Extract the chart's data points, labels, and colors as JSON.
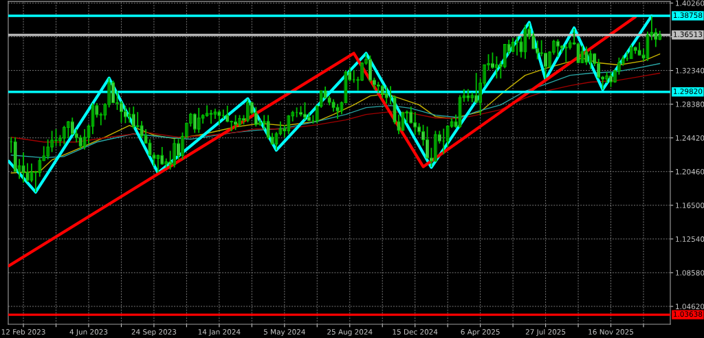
{
  "chart_data": {
    "type": "candlestick",
    "color": "#00c000",
    "x": [
      "2023-01-22",
      "2023-01-29",
      "2023-02-05",
      "2023-02-12",
      "2023-02-19",
      "2023-02-26",
      "2023-03-05",
      "2023-03-12",
      "2023-03-19",
      "2023-03-26",
      "2023-04-02",
      "2023-04-09",
      "2023-04-16",
      "2023-04-23",
      "2023-04-30",
      "2023-05-07",
      "2023-05-14",
      "2023-05-21",
      "2023-05-28",
      "2023-06-04",
      "2023-06-11",
      "2023-06-18",
      "2023-06-25",
      "2023-07-02",
      "2023-07-09",
      "2023-07-16",
      "2023-07-23",
      "2023-07-30",
      "2023-08-06",
      "2023-08-13",
      "2023-08-20",
      "2023-08-27",
      "2023-09-03",
      "2023-09-10",
      "2023-09-17",
      "2023-09-24",
      "2023-10-01",
      "2023-10-08",
      "2023-10-15",
      "2023-10-22",
      "2023-10-29",
      "2023-11-05",
      "2023-11-12",
      "2023-11-19",
      "2023-11-26",
      "2023-12-03",
      "2023-12-10",
      "2023-12-17",
      "2023-12-24",
      "2023-12-31",
      "2024-01-07",
      "2024-01-14",
      "2024-01-21",
      "2024-01-28",
      "2024-02-04",
      "2024-02-11",
      "2024-02-18",
      "2024-02-25",
      "2024-03-03",
      "2024-03-10",
      "2024-03-17",
      "2024-03-24",
      "2024-03-31",
      "2024-04-07",
      "2024-04-14",
      "2024-04-21",
      "2024-04-28",
      "2024-05-05",
      "2024-05-12",
      "2024-05-19",
      "2024-05-26",
      "2024-06-02",
      "2024-06-09",
      "2024-06-16",
      "2024-06-23",
      "2024-06-30",
      "2024-07-07",
      "2024-07-14",
      "2024-07-21",
      "2024-07-28",
      "2024-08-04",
      "2024-08-11",
      "2024-08-18",
      "2024-08-25",
      "2024-09-01",
      "2024-09-08",
      "2024-09-15",
      "2024-09-22",
      "2024-09-29",
      "2024-10-06",
      "2024-10-13",
      "2024-10-20",
      "2024-10-27",
      "2024-11-03",
      "2024-11-10",
      "2024-11-17",
      "2024-11-24",
      "2024-12-01",
      "2024-12-08",
      "2024-12-15",
      "2024-12-22",
      "2024-12-29",
      "2025-01-05",
      "2025-01-12",
      "2025-01-19",
      "2025-01-26",
      "2025-02-02",
      "2025-02-09",
      "2025-02-16",
      "2025-02-23",
      "2025-03-02",
      "2025-03-09",
      "2025-03-16",
      "2025-03-23",
      "2025-03-30",
      "2025-04-06",
      "2025-04-13",
      "2025-04-20",
      "2025-04-27",
      "2025-05-04",
      "2025-05-11",
      "2025-05-18",
      "2025-05-25",
      "2025-06-01",
      "2025-06-08",
      "2025-06-15",
      "2025-06-22",
      "2025-06-29",
      "2025-07-06",
      "2025-07-13",
      "2025-07-20",
      "2025-07-27",
      "2025-08-03",
      "2025-08-10",
      "2025-08-17",
      "2025-08-24",
      "2025-08-31",
      "2025-09-07",
      "2025-09-14",
      "2025-09-21",
      "2025-09-28",
      "2025-10-05",
      "2025-10-12",
      "2025-10-19",
      "2025-10-26",
      "2025-11-02",
      "2025-11-09",
      "2025-11-16",
      "2025-11-23",
      "2025-11-30",
      "2025-12-07",
      "2025-12-14",
      "2025-12-21",
      "2025-12-28",
      "2026-01-04",
      "2026-01-11",
      "2026-01-18",
      "2026-01-25",
      "2026-02-01",
      "2026-02-08"
    ],
    "ohlc": [
      [
        1.2395,
        1.245,
        1.2265,
        1.2395
      ],
      [
        1.2395,
        1.245,
        1.204,
        1.205
      ],
      [
        1.205,
        1.2195,
        1.196,
        1.2115
      ],
      [
        1.2115,
        1.227,
        1.1915,
        1.2035
      ],
      [
        1.2035,
        1.2145,
        1.1925,
        1.1945
      ],
      [
        1.1945,
        1.214,
        1.192,
        1.204
      ],
      [
        1.204,
        1.2055,
        1.1805,
        1.2035
      ],
      [
        1.2035,
        1.2205,
        1.1985,
        1.2175
      ],
      [
        1.2175,
        1.2345,
        1.217,
        1.223
      ],
      [
        1.223,
        1.2425,
        1.219,
        1.2335
      ],
      [
        1.2335,
        1.2525,
        1.2275,
        1.2415
      ],
      [
        1.2415,
        1.2545,
        1.2345,
        1.241
      ],
      [
        1.241,
        1.2475,
        1.2345,
        1.244
      ],
      [
        1.244,
        1.2585,
        1.2365,
        1.2565
      ],
      [
        1.2565,
        1.264,
        1.244,
        1.263
      ],
      [
        1.263,
        1.268,
        1.248,
        1.249
      ],
      [
        1.249,
        1.2545,
        1.239,
        1.2445
      ],
      [
        1.2445,
        1.2475,
        1.231,
        1.2345
      ],
      [
        1.2345,
        1.2545,
        1.2305,
        1.245
      ],
      [
        1.245,
        1.26,
        1.237,
        1.258
      ],
      [
        1.258,
        1.285,
        1.2485,
        1.282
      ],
      [
        1.282,
        1.285,
        1.268,
        1.2715
      ],
      [
        1.2715,
        1.274,
        1.259,
        1.271
      ],
      [
        1.271,
        1.285,
        1.2655,
        1.2835
      ],
      [
        1.2835,
        1.3145,
        1.28,
        1.309
      ],
      [
        1.309,
        1.3115,
        1.285,
        1.2855
      ],
      [
        1.2855,
        1.2995,
        1.277,
        1.285
      ],
      [
        1.285,
        1.2875,
        1.262,
        1.275
      ],
      [
        1.275,
        1.282,
        1.2615,
        1.269
      ],
      [
        1.269,
        1.28,
        1.262,
        1.272
      ],
      [
        1.272,
        1.281,
        1.255,
        1.2575
      ],
      [
        1.2575,
        1.2745,
        1.256,
        1.2585
      ],
      [
        1.2585,
        1.264,
        1.244,
        1.2465
      ],
      [
        1.2465,
        1.2545,
        1.238,
        1.238
      ],
      [
        1.238,
        1.2425,
        1.223,
        1.224
      ],
      [
        1.224,
        1.227,
        1.211,
        1.22
      ],
      [
        1.22,
        1.2245,
        1.2035,
        1.2235
      ],
      [
        1.2235,
        1.2335,
        1.2125,
        1.2135
      ],
      [
        1.2135,
        1.22,
        1.209,
        1.216
      ],
      [
        1.216,
        1.229,
        1.207,
        1.213
      ],
      [
        1.213,
        1.243,
        1.2095,
        1.2375
      ],
      [
        1.2375,
        1.243,
        1.2185,
        1.2235
      ],
      [
        1.2235,
        1.2505,
        1.219,
        1.246
      ],
      [
        1.246,
        1.2615,
        1.2435,
        1.2615
      ],
      [
        1.2615,
        1.2735,
        1.2575,
        1.272
      ],
      [
        1.272,
        1.273,
        1.25,
        1.2545
      ],
      [
        1.2545,
        1.2795,
        1.25,
        1.2675
      ],
      [
        1.2675,
        1.272,
        1.261,
        1.2705
      ],
      [
        1.2705,
        1.2825,
        1.269,
        1.273
      ],
      [
        1.273,
        1.277,
        1.261,
        1.272
      ],
      [
        1.272,
        1.2785,
        1.2665,
        1.2745
      ],
      [
        1.2745,
        1.2765,
        1.2595,
        1.2705
      ],
      [
        1.2705,
        1.2775,
        1.2665,
        1.2705
      ],
      [
        1.2705,
        1.282,
        1.2625,
        1.2635
      ],
      [
        1.2635,
        1.2645,
        1.252,
        1.263
      ],
      [
        1.263,
        1.271,
        1.2535,
        1.26
      ],
      [
        1.26,
        1.271,
        1.2575,
        1.267
      ],
      [
        1.267,
        1.271,
        1.26,
        1.265
      ],
      [
        1.265,
        1.2895,
        1.2625,
        1.2855
      ],
      [
        1.2855,
        1.2865,
        1.2715,
        1.2735
      ],
      [
        1.2735,
        1.2805,
        1.2575,
        1.26
      ],
      [
        1.26,
        1.2655,
        1.2585,
        1.262
      ],
      [
        1.262,
        1.271,
        1.254,
        1.2635
      ],
      [
        1.2635,
        1.271,
        1.2425,
        1.245
      ],
      [
        1.245,
        1.25,
        1.2365,
        1.237
      ],
      [
        1.237,
        1.251,
        1.23,
        1.249
      ],
      [
        1.249,
        1.2635,
        1.247,
        1.2545
      ],
      [
        1.2545,
        1.2595,
        1.2445,
        1.2525
      ],
      [
        1.2525,
        1.271,
        1.2485,
        1.27
      ],
      [
        1.27,
        1.276,
        1.2635,
        1.274
      ],
      [
        1.274,
        1.28,
        1.2685,
        1.274
      ],
      [
        1.274,
        1.2815,
        1.2695,
        1.272
      ],
      [
        1.272,
        1.286,
        1.2655,
        1.2685
      ],
      [
        1.2685,
        1.274,
        1.264,
        1.2645
      ],
      [
        1.2645,
        1.271,
        1.261,
        1.2645
      ],
      [
        1.2645,
        1.2825,
        1.2615,
        1.2815
      ],
      [
        1.2815,
        1.3,
        1.2795,
        1.2995
      ],
      [
        1.2995,
        1.3045,
        1.291,
        1.291
      ],
      [
        1.291,
        1.2935,
        1.2825,
        1.286
      ],
      [
        1.286,
        1.2895,
        1.275,
        1.28
      ],
      [
        1.28,
        1.284,
        1.2665,
        1.276
      ],
      [
        1.276,
        1.287,
        1.272,
        1.2855
      ],
      [
        1.2855,
        1.323,
        1.285,
        1.3215
      ],
      [
        1.3215,
        1.3265,
        1.3105,
        1.3125
      ],
      [
        1.3125,
        1.324,
        1.309,
        1.3125
      ],
      [
        1.3125,
        1.316,
        1.3,
        1.312
      ],
      [
        1.312,
        1.333,
        1.311,
        1.332
      ],
      [
        1.332,
        1.3435,
        1.33,
        1.3365
      ],
      [
        1.3365,
        1.341,
        1.31,
        1.312
      ],
      [
        1.312,
        1.315,
        1.301,
        1.3065
      ],
      [
        1.3065,
        1.31,
        1.2975,
        1.305
      ],
      [
        1.305,
        1.3065,
        1.291,
        1.296
      ],
      [
        1.296,
        1.3045,
        1.2845,
        1.2915
      ],
      [
        1.2915,
        1.305,
        1.2835,
        1.2915
      ],
      [
        1.2915,
        1.294,
        1.2605,
        1.263
      ],
      [
        1.263,
        1.2715,
        1.2485,
        1.253
      ],
      [
        1.253,
        1.275,
        1.2525,
        1.2735
      ],
      [
        1.2735,
        1.2765,
        1.2615,
        1.2745
      ],
      [
        1.2745,
        1.281,
        1.261,
        1.262
      ],
      [
        1.262,
        1.2745,
        1.2475,
        1.257
      ],
      [
        1.257,
        1.2615,
        1.2475,
        1.2515
      ],
      [
        1.2515,
        1.2595,
        1.235,
        1.242
      ],
      [
        1.242,
        1.2575,
        1.22,
        1.2205
      ],
      [
        1.2205,
        1.2325,
        1.21,
        1.217
      ],
      [
        1.217,
        1.2525,
        1.216,
        1.248
      ],
      [
        1.248,
        1.2525,
        1.2375,
        1.2405
      ],
      [
        1.2405,
        1.255,
        1.225,
        1.2405
      ],
      [
        1.2405,
        1.259,
        1.2335,
        1.258
      ],
      [
        1.258,
        1.2675,
        1.256,
        1.263
      ],
      [
        1.263,
        1.2715,
        1.256,
        1.2575
      ],
      [
        1.2575,
        1.2945,
        1.256,
        1.2915
      ],
      [
        1.2915,
        1.3015,
        1.2865,
        1.2935
      ],
      [
        1.2935,
        1.3015,
        1.287,
        1.2915
      ],
      [
        1.2915,
        1.2975,
        1.286,
        1.294
      ],
      [
        1.294,
        1.3205,
        1.286,
        1.286
      ],
      [
        1.286,
        1.314,
        1.271,
        1.3085
      ],
      [
        1.3085,
        1.33,
        1.305,
        1.33
      ],
      [
        1.33,
        1.3425,
        1.3235,
        1.3315
      ],
      [
        1.3315,
        1.3445,
        1.3255,
        1.327
      ],
      [
        1.327,
        1.34,
        1.314,
        1.33
      ],
      [
        1.33,
        1.3345,
        1.314,
        1.328
      ],
      [
        1.328,
        1.3545,
        1.326,
        1.354
      ],
      [
        1.354,
        1.3595,
        1.342,
        1.346
      ],
      [
        1.346,
        1.3615,
        1.3445,
        1.3565
      ],
      [
        1.3565,
        1.363,
        1.341,
        1.357
      ],
      [
        1.357,
        1.3625,
        1.3385,
        1.3455
      ],
      [
        1.3455,
        1.377,
        1.337,
        1.372
      ],
      [
        1.372,
        1.379,
        1.36,
        1.364
      ],
      [
        1.364,
        1.368,
        1.349,
        1.349
      ],
      [
        1.349,
        1.3585,
        1.3365,
        1.344
      ],
      [
        1.344,
        1.359,
        1.34,
        1.3435
      ],
      [
        1.3435,
        1.3445,
        1.314,
        1.328
      ],
      [
        1.328,
        1.346,
        1.3265,
        1.345
      ],
      [
        1.345,
        1.3595,
        1.342,
        1.3575
      ],
      [
        1.3575,
        1.36,
        1.339,
        1.352
      ],
      [
        1.352,
        1.353,
        1.344,
        1.35
      ],
      [
        1.35,
        1.354,
        1.3335,
        1.3505
      ],
      [
        1.3505,
        1.359,
        1.348,
        1.356
      ],
      [
        1.356,
        1.3725,
        1.3535,
        1.3545
      ],
      [
        1.3545,
        1.3555,
        1.3325,
        1.3325
      ],
      [
        1.3325,
        1.3525,
        1.332,
        1.3455
      ],
      [
        1.3455,
        1.3515,
        1.33,
        1.333
      ],
      [
        1.333,
        1.347,
        1.325,
        1.343
      ],
      [
        1.343,
        1.3435,
        1.3285,
        1.3315
      ],
      [
        1.3315,
        1.337,
        1.314,
        1.3155
      ],
      [
        1.3155,
        1.317,
        1.301,
        1.3135
      ],
      [
        1.3135,
        1.3215,
        1.3085,
        1.317
      ],
      [
        1.317,
        1.3215,
        1.304,
        1.31
      ],
      [
        1.31,
        1.3245,
        1.309,
        1.323
      ],
      [
        1.323,
        1.3385,
        1.3185,
        1.3325
      ],
      [
        1.3325,
        1.341,
        1.329,
        1.3375
      ],
      [
        1.3375,
        1.3455,
        1.3345,
        1.3375
      ],
      [
        1.3375,
        1.3535,
        1.3375,
        1.3505
      ],
      [
        1.3505,
        1.3515,
        1.343,
        1.347
      ],
      [
        1.347,
        1.3565,
        1.341,
        1.3415
      ],
      [
        1.3415,
        1.349,
        1.3345,
        1.338
      ],
      [
        1.338,
        1.369,
        1.3345,
        1.365
      ],
      [
        1.365,
        1.387,
        1.359,
        1.368
      ],
      [
        1.368,
        1.373,
        1.351,
        1.36
      ],
      [
        1.36,
        1.37,
        1.359,
        1.36513
      ]
    ],
    "series": [
      {
        "type": "line",
        "color": "#00ffff",
        "x": [
          "2023-01-18",
          "2023-03-05",
          "2023-07-09",
          "2023-10-01",
          "2024-03-03",
          "2024-04-21",
          "2024-09-22",
          "2025-01-12",
          "2025-06-29",
          "2025-07-27",
          "2025-09-14",
          "2025-11-02",
          "2026-01-25"
        ],
        "values": [
          1.2167,
          1.1804,
          1.3145,
          1.203,
          1.2903,
          1.2297,
          1.3436,
          1.2095,
          1.38,
          1.3129,
          1.3735,
          1.301,
          1.3876
        ]
      },
      {
        "type": "line",
        "color": "#ff0000",
        "x": [
          "2023-01-18",
          "2024-09-01",
          "2024-12-29",
          "2025-12-28"
        ],
        "values": [
          1.0939,
          1.3436,
          1.2103,
          1.3864
        ]
      },
      {
        "type": "line",
        "color": "#c8b400",
        "x": [
          "2023-01-22",
          "2023-03-12",
          "2023-04-02",
          "2023-05-28",
          "2023-07-02",
          "2023-08-13",
          "2023-09-24",
          "2023-10-29",
          "2023-12-10",
          "2024-02-11",
          "2024-03-24",
          "2024-05-05",
          "2024-06-30",
          "2024-07-28",
          "2024-09-01",
          "2024-09-29",
          "2024-10-27",
          "2024-11-24",
          "2024-12-22",
          "2025-01-19",
          "2025-02-16",
          "2025-04-06",
          "2025-05-18",
          "2025-06-22",
          "2025-07-27",
          "2025-09-07",
          "2025-09-28",
          "2025-10-26",
          "2025-11-30",
          "2026-01-11",
          "2026-02-08"
        ],
        "values": [
          1.203,
          1.2046,
          1.2183,
          1.2345,
          1.245,
          1.2587,
          1.2474,
          1.2434,
          1.2474,
          1.2571,
          1.2612,
          1.2587,
          1.2636,
          1.2717,
          1.283,
          1.2935,
          1.2959,
          1.2895,
          1.283,
          1.2693,
          1.2668,
          1.2749,
          1.2992,
          1.3177,
          1.3258,
          1.3339,
          1.3379,
          1.3323,
          1.3299,
          1.3347,
          1.3428
        ]
      },
      {
        "type": "line",
        "color": "#2aa7a7",
        "x": [
          "2023-01-22",
          "2023-03-19",
          "2023-04-23",
          "2023-06-18",
          "2023-08-20",
          "2023-10-15",
          "2023-11-26",
          "2024-02-11",
          "2024-03-17",
          "2024-05-05",
          "2024-06-30",
          "2024-08-18",
          "2024-09-22",
          "2024-11-03",
          "2024-12-08",
          "2025-01-19",
          "2025-03-02",
          "2025-03-30",
          "2025-05-11",
          "2025-06-22",
          "2025-07-27",
          "2025-09-07",
          "2025-10-12",
          "2025-11-23",
          "2025-12-28",
          "2026-02-08"
        ],
        "values": [
          1.224,
          1.2208,
          1.2224,
          1.2393,
          1.249,
          1.245,
          1.2426,
          1.2507,
          1.2531,
          1.2555,
          1.2636,
          1.2717,
          1.2798,
          1.2822,
          1.279,
          1.2709,
          1.268,
          1.2749,
          1.283,
          1.2992,
          1.3072,
          1.3177,
          1.3202,
          1.3218,
          1.3258,
          1.3315
        ]
      },
      {
        "type": "line",
        "color": "#a00000",
        "x": [
          "2023-01-22",
          "2023-03-19",
          "2023-05-14",
          "2023-07-09",
          "2023-09-10",
          "2023-11-05",
          "2023-12-31",
          "2024-02-11",
          "2024-03-17",
          "2024-05-05",
          "2024-06-30",
          "2024-08-18",
          "2024-09-22",
          "2024-11-03",
          "2024-12-08",
          "2025-01-19",
          "2025-03-02",
          "2025-03-30",
          "2025-05-11",
          "2025-06-22",
          "2025-07-27",
          "2025-09-07",
          "2025-10-12",
          "2025-11-23",
          "2025-12-28",
          "2026-02-08"
        ],
        "values": [
          1.245,
          1.2393,
          1.2393,
          1.245,
          1.2507,
          1.245,
          1.2474,
          1.2507,
          1.2547,
          1.2547,
          1.2596,
          1.2652,
          1.2717,
          1.2749,
          1.2733,
          1.2676,
          1.267,
          1.2709,
          1.2773,
          1.2911,
          1.2992,
          1.3056,
          1.3097,
          1.3113,
          1.3153,
          1.3202
        ]
      }
    ],
    "ref_lines": [
      {
        "axis": "y",
        "value": 1.38758,
        "label": "1.38758",
        "color": "#00ffff"
      },
      {
        "axis": "y",
        "value": 1.2982,
        "label": "1.29820",
        "color": "#00ffff"
      },
      {
        "axis": "y",
        "value": 1.03638,
        "label": "1.03638",
        "color": "#ff0000"
      },
      {
        "axis": "y",
        "value": 1.36513,
        "label": "1.36513",
        "color": "#c0c0c0"
      }
    ],
    "xlim": [
      "2023-01-17",
      "2026-02-26"
    ],
    "ylim": [
      1.0252,
      1.4045
    ],
    "xticks": [
      {
        "value": "2023-02-12",
        "label": "12 Feb 2023"
      },
      {
        "value": "2023-04-09",
        "label": null
      },
      {
        "value": "2023-06-04",
        "label": "4 Jun 2023"
      },
      {
        "value": "2023-07-30",
        "label": null
      },
      {
        "value": "2023-09-24",
        "label": "24 Sep 2023"
      },
      {
        "value": "2023-11-19",
        "label": null
      },
      {
        "value": "2024-01-14",
        "label": "14 Jan 2024"
      },
      {
        "value": "2024-03-10",
        "label": null
      },
      {
        "value": "2024-05-05",
        "label": "5 May 2024"
      },
      {
        "value": "2024-06-30",
        "label": null
      },
      {
        "value": "2024-08-25",
        "label": "25 Aug 2024"
      },
      {
        "value": "2024-10-20",
        "label": null
      },
      {
        "value": "2024-12-15",
        "label": "15 Dec 2024"
      },
      {
        "value": "2025-02-09",
        "label": null
      },
      {
        "value": "2025-04-06",
        "label": "6 Apr 2025"
      },
      {
        "value": "2025-06-01",
        "label": null
      },
      {
        "value": "2025-07-27",
        "label": "27 Jul 2025"
      },
      {
        "value": "2025-09-21",
        "label": null
      },
      {
        "value": "2025-11-16",
        "label": "16 Nov 2025"
      },
      {
        "value": "2026-01-11",
        "label": null
      }
    ],
    "yticks": [
      {
        "value": 1.4026,
        "label": "1.40260"
      },
      {
        "value": 1.363,
        "label": null
      },
      {
        "value": 1.3234,
        "label": "1.32340"
      },
      {
        "value": 1.2838,
        "label": "1.28380"
      },
      {
        "value": 1.2442,
        "label": "1.24420"
      },
      {
        "value": 1.2046,
        "label": "1.20460"
      },
      {
        "value": 1.165,
        "label": "1.16500"
      },
      {
        "value": 1.1254,
        "label": "1.12540"
      },
      {
        "value": 1.0858,
        "label": "1.08580"
      },
      {
        "value": 1.0462,
        "label": "1.04620"
      }
    ],
    "grid": true
  }
}
